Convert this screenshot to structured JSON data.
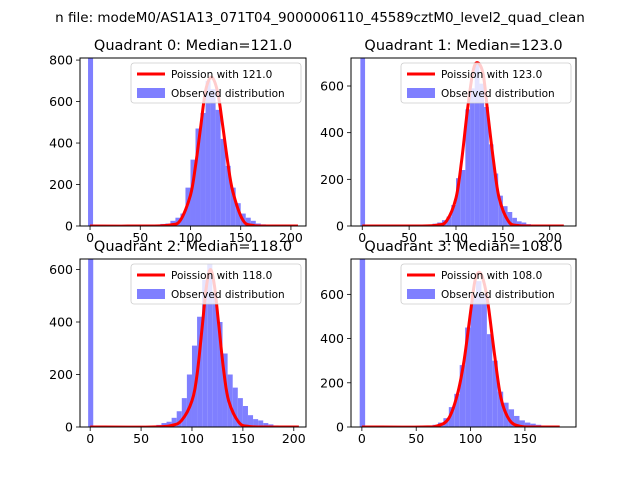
{
  "figure": {
    "suptitle": "n file: modeM0/AS1A13_071T04_9000006110_45589cztM0_level2_quad_clean"
  },
  "colors": {
    "poisson_line": "#ff0000",
    "histogram_fill": "#7f7fff",
    "axes_edge": "#000000",
    "background": "#ffffff"
  },
  "chart_data": [
    {
      "type": "bar",
      "title": "Quadrant 0: Median=121.0",
      "legend_position": "upper right",
      "xlim": [
        -10,
        215
      ],
      "ylim": [
        0,
        810
      ],
      "xticks": [
        0,
        50,
        100,
        150,
        200
      ],
      "yticks": [
        0,
        200,
        400,
        600,
        800
      ],
      "median": 121.0,
      "series": [
        {
          "name": "Poission with 121.0",
          "kind": "line",
          "mean": 121.0,
          "peak": 718,
          "x": [
            0,
            60,
            80,
            90,
            100,
            105,
            110,
            115,
            121,
            127,
            132,
            137,
            142,
            152,
            162,
            182,
            207
          ],
          "y": [
            0,
            0,
            5,
            28,
            149,
            290,
            472,
            652,
            718,
            646,
            486,
            310,
            169,
            30,
            3,
            0,
            0
          ]
        },
        {
          "name": "Observed distribution",
          "kind": "hist",
          "bin_width": 5,
          "bins_left": [
            -2,
            60,
            65,
            70,
            75,
            80,
            85,
            90,
            95,
            100,
            105,
            110,
            115,
            120,
            125,
            130,
            135,
            140,
            145,
            150,
            155,
            160,
            165,
            170,
            175,
            180,
            185,
            190,
            195,
            200
          ],
          "counts": [
            810,
            2,
            5,
            10,
            12,
            25,
            40,
            60,
            185,
            320,
            470,
            545,
            700,
            660,
            560,
            420,
            290,
            185,
            110,
            60,
            40,
            25,
            12,
            8,
            5,
            3,
            2,
            1,
            1,
            1
          ]
        }
      ]
    },
    {
      "type": "bar",
      "title": "Quadrant 1: Median=123.0",
      "legend_position": "upper right",
      "xlim": [
        -12,
        228
      ],
      "ylim": [
        0,
        720
      ],
      "xticks": [
        0,
        50,
        100,
        150,
        200
      ],
      "yticks": [
        0,
        200,
        400,
        600
      ],
      "median": 123.0,
      "series": [
        {
          "name": "Poission with 123.0",
          "kind": "line",
          "mean": 123.0,
          "peak": 700,
          "x": [
            0,
            60,
            80,
            90,
            100,
            106,
            112,
            118,
            123,
            129,
            134,
            140,
            146,
            156,
            166,
            186,
            215
          ],
          "y": [
            0,
            0,
            4,
            22,
            120,
            280,
            490,
            660,
            700,
            650,
            480,
            280,
            120,
            20,
            2,
            0,
            0
          ]
        },
        {
          "name": "Observed distribution",
          "kind": "hist",
          "bin_width": 5,
          "bins_left": [
            -2,
            55,
            60,
            65,
            70,
            75,
            80,
            85,
            90,
            95,
            100,
            105,
            110,
            115,
            120,
            125,
            130,
            135,
            140,
            145,
            150,
            155,
            160,
            165,
            170,
            175,
            180,
            185,
            190,
            195,
            200,
            205
          ],
          "counts": [
            720,
            2,
            3,
            4,
            6,
            10,
            15,
            25,
            40,
            90,
            205,
            240,
            500,
            590,
            700,
            610,
            510,
            350,
            225,
            130,
            85,
            60,
            35,
            20,
            15,
            8,
            6,
            4,
            3,
            2,
            2,
            1
          ]
        }
      ]
    },
    {
      "type": "bar",
      "title": "Quadrant 2: Median=118.0",
      "legend_position": "upper right",
      "xlim": [
        -10,
        212
      ],
      "ylim": [
        0,
        640
      ],
      "xticks": [
        0,
        50,
        100,
        150,
        200
      ],
      "yticks": [
        0,
        200,
        400,
        600
      ],
      "median": 118.0,
      "series": [
        {
          "name": "Poission with 118.0",
          "kind": "line",
          "mean": 118.0,
          "peak": 600,
          "x": [
            0,
            60,
            80,
            90,
            100,
            105,
            110,
            114,
            118,
            122,
            126,
            131,
            136,
            146,
            156,
            176,
            205
          ],
          "y": [
            0,
            0,
            6,
            26,
            100,
            200,
            380,
            530,
            600,
            540,
            400,
            220,
            100,
            18,
            2,
            0,
            0
          ]
        },
        {
          "name": "Observed distribution",
          "kind": "hist",
          "bin_width": 5,
          "bins_left": [
            -2,
            55,
            60,
            65,
            70,
            75,
            80,
            85,
            90,
            95,
            100,
            105,
            110,
            115,
            120,
            125,
            130,
            135,
            140,
            145,
            150,
            155,
            160,
            165,
            170,
            175,
            180,
            185,
            190
          ],
          "counts": [
            640,
            3,
            5,
            8,
            15,
            20,
            35,
            60,
            110,
            200,
            310,
            420,
            560,
            620,
            510,
            400,
            280,
            200,
            150,
            110,
            80,
            45,
            30,
            25,
            15,
            10,
            6,
            4,
            3
          ]
        }
      ]
    },
    {
      "type": "bar",
      "title": "Quadrant 3: Median=108.0",
      "legend_position": "upper right",
      "xlim": [
        -10,
        197
      ],
      "ylim": [
        0,
        760
      ],
      "xticks": [
        0,
        50,
        100,
        150
      ],
      "yticks": [
        0,
        200,
        400,
        600
      ],
      "median": 108.0,
      "series": [
        {
          "name": "Poission with 108.0",
          "kind": "line",
          "mean": 108.0,
          "peak": 700,
          "x": [
            0,
            55,
            70,
            80,
            88,
            94,
            100,
            104,
            108,
            112,
            116,
            122,
            128,
            136,
            146,
            160,
            182
          ],
          "y": [
            0,
            0,
            6,
            40,
            150,
            300,
            520,
            660,
            700,
            660,
            560,
            330,
            130,
            30,
            3,
            0,
            0
          ]
        },
        {
          "name": "Observed distribution",
          "kind": "hist",
          "bin_width": 5,
          "bins_left": [
            -2,
            55,
            60,
            65,
            70,
            75,
            80,
            85,
            90,
            95,
            100,
            105,
            110,
            115,
            120,
            125,
            130,
            135,
            140,
            145,
            150,
            155,
            160,
            165,
            170
          ],
          "counts": [
            760,
            3,
            5,
            10,
            20,
            40,
            90,
            150,
            280,
            450,
            600,
            660,
            600,
            420,
            300,
            160,
            110,
            80,
            50,
            30,
            20,
            15,
            10,
            5,
            3
          ]
        }
      ]
    }
  ]
}
